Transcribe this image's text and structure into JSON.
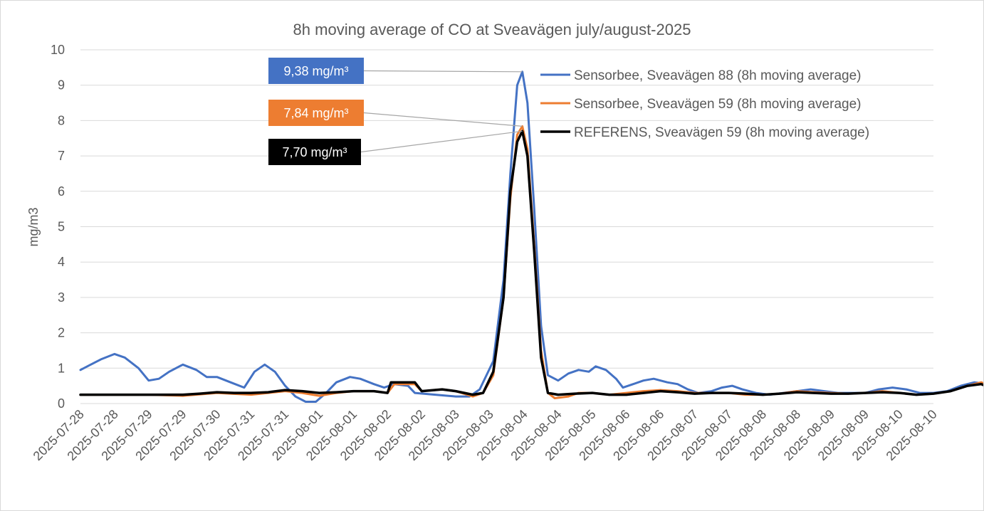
{
  "chart_data": {
    "type": "line",
    "title": "8h moving average of CO at Sveavägen july/august-2025",
    "ylabel": "mg/m3",
    "xlabel": "",
    "ylim": [
      0,
      10
    ],
    "yticks": [
      "0",
      "1",
      "2",
      "3",
      "4",
      "5",
      "6",
      "7",
      "8",
      "9",
      "10"
    ],
    "grid": true,
    "legend": "top-right",
    "x_tick_labels": [
      "2025-07-28",
      "2025-07-28",
      "2025-07-29",
      "2025-07-29",
      "2025-07-30",
      "2025-07-31",
      "2025-07-31",
      "2025-08-01",
      "2025-08-01",
      "2025-08-02",
      "2025-08-02",
      "2025-08-03",
      "2025-08-03",
      "2025-08-04",
      "2025-08-04",
      "2025-08-05",
      "2025-08-06",
      "2025-08-06",
      "2025-08-07",
      "2025-08-07",
      "2025-08-08",
      "2025-08-08",
      "2025-08-09",
      "2025-08-09",
      "2025-08-10",
      "2025-08-10"
    ],
    "series": [
      {
        "name": "Sensorbee, Sveavägen 88 (8h moving average)",
        "color": "#4472C4",
        "points": [
          [
            0,
            0.95
          ],
          [
            0.3,
            1.1
          ],
          [
            0.6,
            1.25
          ],
          [
            1.0,
            1.4
          ],
          [
            1.3,
            1.3
          ],
          [
            1.7,
            1.0
          ],
          [
            2.0,
            0.65
          ],
          [
            2.3,
            0.7
          ],
          [
            2.6,
            0.9
          ],
          [
            3.0,
            1.1
          ],
          [
            3.4,
            0.95
          ],
          [
            3.7,
            0.75
          ],
          [
            4.0,
            0.75
          ],
          [
            4.4,
            0.6
          ],
          [
            4.8,
            0.45
          ],
          [
            5.1,
            0.9
          ],
          [
            5.4,
            1.1
          ],
          [
            5.7,
            0.9
          ],
          [
            6.0,
            0.5
          ],
          [
            6.3,
            0.2
          ],
          [
            6.6,
            0.05
          ],
          [
            6.9,
            0.05
          ],
          [
            7.2,
            0.3
          ],
          [
            7.5,
            0.6
          ],
          [
            7.9,
            0.75
          ],
          [
            8.2,
            0.7
          ],
          [
            8.6,
            0.55
          ],
          [
            8.9,
            0.45
          ],
          [
            9.2,
            0.55
          ],
          [
            9.6,
            0.5
          ],
          [
            9.8,
            0.3
          ],
          [
            10.4,
            0.25
          ],
          [
            11.0,
            0.2
          ],
          [
            11.4,
            0.2
          ],
          [
            11.7,
            0.4
          ],
          [
            12.1,
            1.2
          ],
          [
            12.4,
            3.5
          ],
          [
            12.6,
            6.5
          ],
          [
            12.8,
            9.0
          ],
          [
            12.95,
            9.38
          ],
          [
            13.1,
            8.5
          ],
          [
            13.3,
            5.5
          ],
          [
            13.5,
            2.2
          ],
          [
            13.7,
            0.8
          ],
          [
            14.0,
            0.65
          ],
          [
            14.3,
            0.85
          ],
          [
            14.6,
            0.95
          ],
          [
            14.9,
            0.9
          ],
          [
            15.1,
            1.05
          ],
          [
            15.4,
            0.95
          ],
          [
            15.7,
            0.7
          ],
          [
            15.9,
            0.45
          ],
          [
            16.2,
            0.55
          ],
          [
            16.5,
            0.65
          ],
          [
            16.8,
            0.7
          ],
          [
            17.2,
            0.6
          ],
          [
            17.5,
            0.55
          ],
          [
            17.8,
            0.4
          ],
          [
            18.1,
            0.3
          ],
          [
            18.5,
            0.35
          ],
          [
            18.8,
            0.45
          ],
          [
            19.1,
            0.5
          ],
          [
            19.4,
            0.4
          ],
          [
            19.8,
            0.3
          ],
          [
            20.2,
            0.25
          ],
          [
            20.6,
            0.3
          ],
          [
            21.0,
            0.35
          ],
          [
            21.4,
            0.4
          ],
          [
            21.8,
            0.35
          ],
          [
            22.2,
            0.3
          ],
          [
            22.6,
            0.3
          ],
          [
            23.0,
            0.3
          ],
          [
            23.4,
            0.4
          ],
          [
            23.8,
            0.45
          ],
          [
            24.2,
            0.4
          ],
          [
            24.6,
            0.3
          ],
          [
            25.0,
            0.3
          ],
          [
            25.4,
            0.35
          ],
          [
            25.8,
            0.5
          ],
          [
            26.2,
            0.6
          ],
          [
            26.6,
            0.55
          ],
          [
            27.0,
            0.35
          ],
          [
            27.4,
            0.25
          ],
          [
            27.8,
            0.3
          ],
          [
            28.2,
            0.4
          ],
          [
            28.6,
            0.5
          ],
          [
            29.0,
            0.5
          ],
          [
            29.4,
            0.35
          ],
          [
            29.8,
            0.25
          ],
          [
            30.2,
            0.3
          ],
          [
            30.6,
            0.4
          ],
          [
            31.0,
            0.4
          ]
        ]
      },
      {
        "name": "Sensorbee, Sveavägen 59 (8h moving average)",
        "color": "#ED7D31",
        "points": [
          [
            0,
            0.25
          ],
          [
            1.0,
            0.25
          ],
          [
            2.0,
            0.25
          ],
          [
            3.0,
            0.22
          ],
          [
            4.0,
            0.3
          ],
          [
            5.0,
            0.25
          ],
          [
            5.5,
            0.3
          ],
          [
            6.0,
            0.35
          ],
          [
            6.5,
            0.3
          ],
          [
            7.0,
            0.22
          ],
          [
            7.5,
            0.3
          ],
          [
            8.0,
            0.35
          ],
          [
            8.6,
            0.35
          ],
          [
            9.0,
            0.3
          ],
          [
            9.2,
            0.55
          ],
          [
            9.8,
            0.55
          ],
          [
            10.0,
            0.35
          ],
          [
            10.6,
            0.4
          ],
          [
            11.0,
            0.35
          ],
          [
            11.5,
            0.2
          ],
          [
            11.8,
            0.3
          ],
          [
            12.1,
            0.8
          ],
          [
            12.4,
            3.0
          ],
          [
            12.6,
            5.8
          ],
          [
            12.8,
            7.6
          ],
          [
            12.95,
            7.84
          ],
          [
            13.1,
            7.2
          ],
          [
            13.3,
            4.5
          ],
          [
            13.5,
            1.5
          ],
          [
            13.7,
            0.3
          ],
          [
            13.9,
            0.15
          ],
          [
            14.3,
            0.2
          ],
          [
            14.6,
            0.3
          ],
          [
            15.0,
            0.3
          ],
          [
            15.5,
            0.25
          ],
          [
            16.0,
            0.3
          ],
          [
            16.5,
            0.35
          ],
          [
            17.0,
            0.38
          ],
          [
            17.5,
            0.35
          ],
          [
            18.0,
            0.3
          ],
          [
            18.5,
            0.3
          ],
          [
            19.0,
            0.3
          ],
          [
            19.5,
            0.25
          ],
          [
            20.0,
            0.25
          ],
          [
            20.5,
            0.28
          ],
          [
            21.0,
            0.35
          ],
          [
            21.5,
            0.32
          ],
          [
            22.0,
            0.3
          ],
          [
            22.5,
            0.28
          ],
          [
            23.0,
            0.3
          ],
          [
            23.5,
            0.35
          ],
          [
            24.0,
            0.3
          ],
          [
            24.5,
            0.25
          ],
          [
            25.0,
            0.28
          ],
          [
            25.5,
            0.35
          ],
          [
            26.0,
            0.5
          ],
          [
            26.4,
            0.6
          ],
          [
            26.8,
            0.45
          ],
          [
            27.2,
            0.2
          ],
          [
            27.6,
            0.15
          ],
          [
            28.0,
            0.3
          ],
          [
            28.5,
            0.5
          ],
          [
            28.9,
            0.65
          ],
          [
            29.3,
            0.5
          ],
          [
            29.6,
            0.35
          ],
          [
            30.0,
            0.2
          ],
          [
            30.5,
            0.2
          ],
          [
            31.0,
            0.3
          ]
        ]
      },
      {
        "name": "REFERENS, Sveavägen 59 (8h moving average)",
        "color": "#000000",
        "points": [
          [
            0,
            0.25
          ],
          [
            1.0,
            0.25
          ],
          [
            2.0,
            0.25
          ],
          [
            3.0,
            0.25
          ],
          [
            3.5,
            0.28
          ],
          [
            4.0,
            0.32
          ],
          [
            4.5,
            0.3
          ],
          [
            5.0,
            0.3
          ],
          [
            5.5,
            0.32
          ],
          [
            6.0,
            0.38
          ],
          [
            6.5,
            0.35
          ],
          [
            7.0,
            0.3
          ],
          [
            7.5,
            0.32
          ],
          [
            8.0,
            0.35
          ],
          [
            8.6,
            0.35
          ],
          [
            9.0,
            0.3
          ],
          [
            9.1,
            0.6
          ],
          [
            9.5,
            0.6
          ],
          [
            9.8,
            0.6
          ],
          [
            10.0,
            0.35
          ],
          [
            10.6,
            0.4
          ],
          [
            11.0,
            0.35
          ],
          [
            11.5,
            0.25
          ],
          [
            11.8,
            0.3
          ],
          [
            12.1,
            0.9
          ],
          [
            12.4,
            3.0
          ],
          [
            12.6,
            6.0
          ],
          [
            12.8,
            7.4
          ],
          [
            12.95,
            7.7
          ],
          [
            13.1,
            7.0
          ],
          [
            13.3,
            4.3
          ],
          [
            13.5,
            1.3
          ],
          [
            13.7,
            0.3
          ],
          [
            14.0,
            0.25
          ],
          [
            14.5,
            0.28
          ],
          [
            15.0,
            0.3
          ],
          [
            15.5,
            0.25
          ],
          [
            16.0,
            0.25
          ],
          [
            16.5,
            0.3
          ],
          [
            17.0,
            0.35
          ],
          [
            17.5,
            0.32
          ],
          [
            18.0,
            0.28
          ],
          [
            18.5,
            0.3
          ],
          [
            19.0,
            0.3
          ],
          [
            19.5,
            0.28
          ],
          [
            20.0,
            0.25
          ],
          [
            20.5,
            0.28
          ],
          [
            21.0,
            0.32
          ],
          [
            21.5,
            0.3
          ],
          [
            22.0,
            0.28
          ],
          [
            22.5,
            0.28
          ],
          [
            23.0,
            0.3
          ],
          [
            23.5,
            0.32
          ],
          [
            24.0,
            0.3
          ],
          [
            24.5,
            0.25
          ],
          [
            25.0,
            0.28
          ],
          [
            25.5,
            0.35
          ],
          [
            26.0,
            0.5
          ],
          [
            26.4,
            0.55
          ],
          [
            26.8,
            0.4
          ],
          [
            27.2,
            0.25
          ],
          [
            27.6,
            0.25
          ],
          [
            28.0,
            0.35
          ],
          [
            28.5,
            0.5
          ],
          [
            28.9,
            0.6
          ],
          [
            29.3,
            0.5
          ],
          [
            29.6,
            0.3
          ],
          [
            30.0,
            0.25
          ],
          [
            30.5,
            0.28
          ],
          [
            31.0,
            0.3
          ]
        ]
      }
    ],
    "annotations": [
      {
        "text": "9,38 mg/m³",
        "series": 0,
        "value": 9.38,
        "background": "#4472C4"
      },
      {
        "text": "7,84 mg/m³",
        "series": 1,
        "value": 7.84,
        "background": "#ED7D31"
      },
      {
        "text": "7,70 mg/m³",
        "series": 2,
        "value": 7.7,
        "background": "#000000"
      }
    ]
  }
}
